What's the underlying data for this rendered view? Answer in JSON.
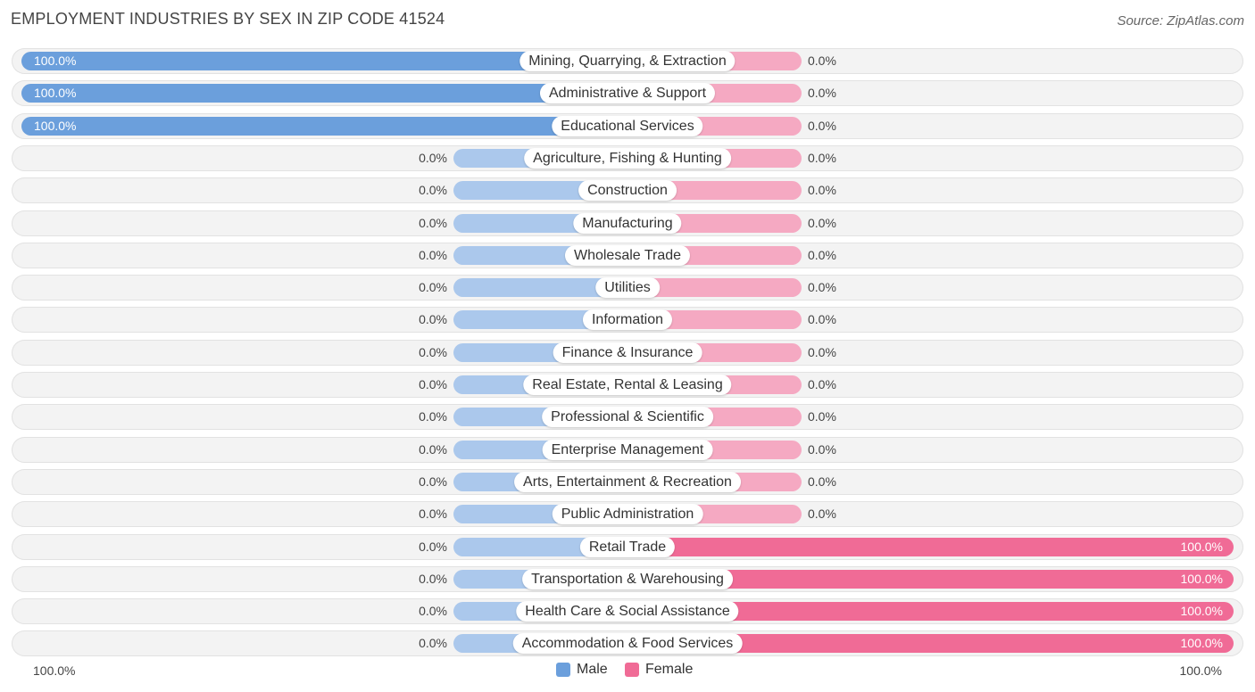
{
  "header": {
    "title": "EMPLOYMENT INDUSTRIES BY SEX IN ZIP CODE 41524",
    "source": "Source: ZipAtlas.com"
  },
  "colors": {
    "male": "#6b9fdc",
    "male_light": "#abc8ec",
    "female": "#f06b96",
    "female_light": "#f5a9c2"
  },
  "chart_data": {
    "type": "bar",
    "orientation": "horizontal-diverging",
    "title": "EMPLOYMENT INDUSTRIES BY SEX IN ZIP CODE 41524",
    "categories": [
      "Mining, Quarrying, & Extraction",
      "Administrative & Support",
      "Educational Services",
      "Agriculture, Fishing & Hunting",
      "Construction",
      "Manufacturing",
      "Wholesale Trade",
      "Utilities",
      "Information",
      "Finance & Insurance",
      "Real Estate, Rental & Leasing",
      "Professional & Scientific",
      "Enterprise Management",
      "Arts, Entertainment & Recreation",
      "Public Administration",
      "Retail Trade",
      "Transportation & Warehousing",
      "Health Care & Social Assistance",
      "Accommodation & Food Services"
    ],
    "series": [
      {
        "name": "Male",
        "values": [
          100,
          100,
          100,
          0,
          0,
          0,
          0,
          0,
          0,
          0,
          0,
          0,
          0,
          0,
          0,
          0,
          0,
          0,
          0
        ],
        "labels": [
          "100.0%",
          "100.0%",
          "100.0%",
          "0.0%",
          "0.0%",
          "0.0%",
          "0.0%",
          "0.0%",
          "0.0%",
          "0.0%",
          "0.0%",
          "0.0%",
          "0.0%",
          "0.0%",
          "0.0%",
          "0.0%",
          "0.0%",
          "0.0%",
          "0.0%"
        ]
      },
      {
        "name": "Female",
        "values": [
          0,
          0,
          0,
          0,
          0,
          0,
          0,
          0,
          0,
          0,
          0,
          0,
          0,
          0,
          0,
          100,
          100,
          100,
          100
        ],
        "labels": [
          "0.0%",
          "0.0%",
          "0.0%",
          "0.0%",
          "0.0%",
          "0.0%",
          "0.0%",
          "0.0%",
          "0.0%",
          "0.0%",
          "0.0%",
          "0.0%",
          "0.0%",
          "0.0%",
          "0.0%",
          "100.0%",
          "100.0%",
          "100.0%",
          "100.0%"
        ]
      }
    ],
    "xlim": [
      0,
      100
    ],
    "axis_left_label": "100.0%",
    "axis_right_label": "100.0%",
    "legend": [
      "Male",
      "Female"
    ],
    "legend_position": "bottom-center"
  }
}
